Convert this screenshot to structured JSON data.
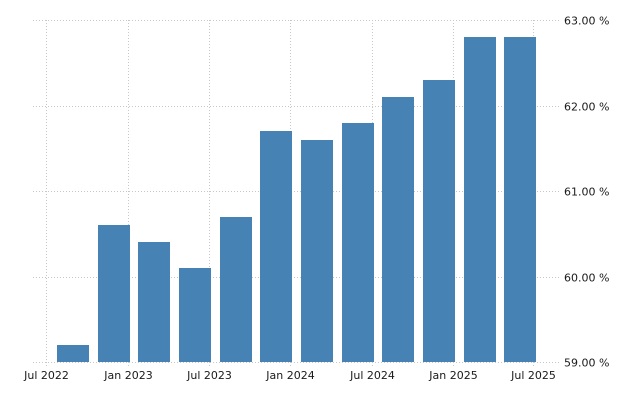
{
  "chart_data": {
    "type": "bar",
    "title": "",
    "xlabel": "",
    "ylabel": "",
    "ylim": [
      59,
      63
    ],
    "yticks": [
      "59.00 %",
      "60.00 %",
      "61.00 %",
      "62.00 %",
      "63.00 %"
    ],
    "ytick_values": [
      59,
      60,
      61,
      62,
      63
    ],
    "xticks": [
      "Jul 2022",
      "Jan 2023",
      "Jul 2023",
      "Jan 2024",
      "Jul 2024",
      "Jan 2025",
      "Jul 2025"
    ],
    "categories": [
      "Q3 2022",
      "Q4 2022",
      "Q1 2023",
      "Q2 2023",
      "Q3 2023",
      "Q4 2023",
      "Q1 2024",
      "Q2 2024",
      "Q3 2024",
      "Q4 2024",
      "Q1 2025",
      "Q2 2025"
    ],
    "values": [
      59.2,
      60.6,
      60.4,
      60.1,
      60.7,
      61.7,
      61.6,
      61.8,
      62.1,
      62.3,
      62.8,
      62.8
    ],
    "grid": true,
    "legend": null,
    "bar_color": "#4682b4",
    "y_axis_position": "right"
  }
}
